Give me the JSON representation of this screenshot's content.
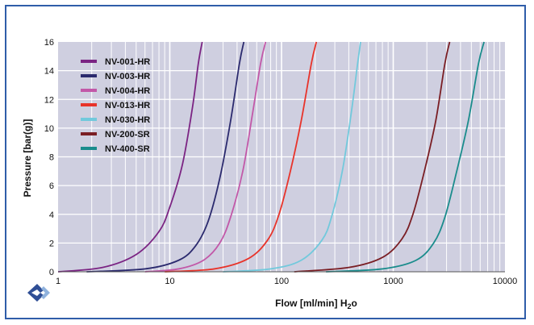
{
  "chart_data": {
    "type": "line",
    "xlabel_main": "Flow [ml/min] H",
    "xlabel_sub": "2",
    "xlabel_tail": "o",
    "ylabel": "Pressure [bar(g)]",
    "x_scale": "log",
    "xlim": [
      1,
      10000
    ],
    "ylim": [
      0,
      16
    ],
    "x_ticks": [
      1,
      10,
      100,
      1000,
      10000
    ],
    "x_tick_labels": [
      "1",
      "10",
      "100",
      "1000",
      "10000"
    ],
    "y_ticks": [
      0,
      2,
      4,
      6,
      8,
      10,
      12,
      14,
      16
    ],
    "y_tick_labels": [
      "0",
      "2",
      "4",
      "6",
      "8",
      "10",
      "12",
      "14",
      "16"
    ],
    "grid": true,
    "legend_position": "top-left",
    "series": [
      {
        "name": "NV-001-HR",
        "color": "#7b2483",
        "x": [
          1,
          2.5,
          5,
          8,
          10,
          13,
          16,
          18,
          19.5
        ],
        "y": [
          0,
          0.3,
          1.2,
          2.8,
          4.5,
          7.5,
          11.5,
          14.5,
          16
        ]
      },
      {
        "name": "NV-003-HR",
        "color": "#2b2a6e",
        "x": [
          1.8,
          6,
          12,
          17,
          22,
          28,
          35,
          42,
          46
        ],
        "y": [
          0,
          0.2,
          0.8,
          1.8,
          3.5,
          6.5,
          10.5,
          14.5,
          16
        ]
      },
      {
        "name": "NV-004-HR",
        "color": "#c258a8",
        "x": [
          6,
          12,
          20,
          28,
          35,
          45,
          55,
          65,
          72
        ],
        "y": [
          0,
          0.2,
          0.8,
          2,
          3.8,
          7,
          11,
          14.5,
          16
        ]
      },
      {
        "name": "NV-013-HR",
        "color": "#e8332a",
        "x": [
          9,
          25,
          50,
          75,
          95,
          120,
          150,
          185,
          205
        ],
        "y": [
          0,
          0.2,
          0.9,
          2.2,
          4,
          7,
          10.5,
          14.5,
          16
        ]
      },
      {
        "name": "NV-030-HR",
        "color": "#72c9dc",
        "x": [
          30,
          80,
          150,
          230,
          280,
          350,
          420,
          480,
          510
        ],
        "y": [
          0,
          0.2,
          0.8,
          2.2,
          3.8,
          7,
          11,
          14.5,
          16
        ]
      },
      {
        "name": "NV-200-SR",
        "color": "#7a1e24",
        "x": [
          130,
          400,
          800,
          1200,
          1500,
          1900,
          2400,
          2900,
          3200
        ],
        "y": [
          0,
          0.3,
          1,
          2.3,
          4,
          7,
          10.5,
          14.5,
          16
        ]
      },
      {
        "name": "NV-400-SR",
        "color": "#1a8c8c",
        "x": [
          250,
          800,
          1600,
          2300,
          2900,
          3700,
          4700,
          5800,
          6500
        ],
        "y": [
          0,
          0.2,
          0.8,
          2,
          3.8,
          7,
          10.5,
          14.5,
          16
        ]
      }
    ]
  },
  "colors": {
    "frame": "#2f5da9",
    "plot_bg": "#cfcfe0",
    "grid": "#ffffff",
    "logo_dark": "#2f4e95",
    "logo_light": "#8fb2dd"
  },
  "logo_icon": "double-chevron-diamond-logo"
}
